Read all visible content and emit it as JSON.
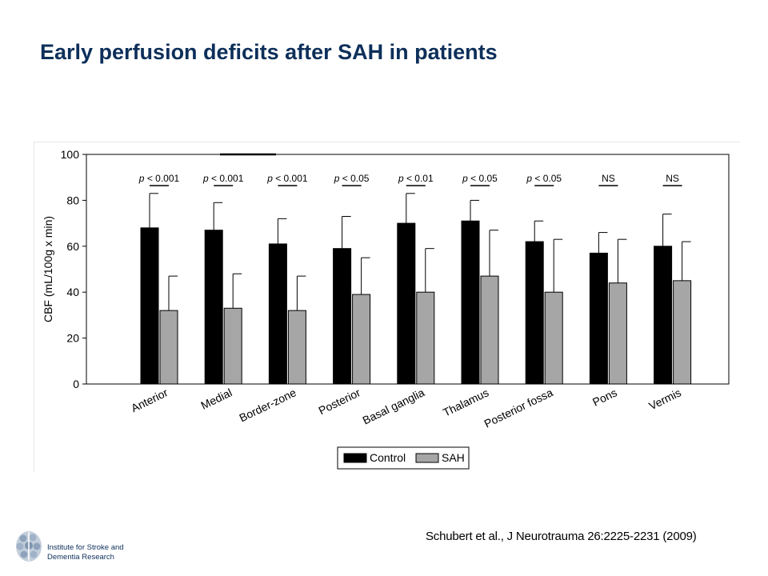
{
  "slide": {
    "title": "Early perfusion deficits after SAH in patients",
    "citation": "Schubert et al., J Neurotrauma 26:2225-2231 (2009)",
    "logo_line1": "Institute for Stroke and",
    "logo_line2": "Dementia Research"
  },
  "colors": {
    "control": "#000000",
    "sah": "#a6a6a6",
    "title": "#0d2f5a"
  },
  "chart_data": {
    "type": "bar",
    "title": "",
    "xlabel": "",
    "ylabel": "CBF (mL/100g x min)",
    "ylim": [
      0,
      100
    ],
    "yticks": [
      0,
      20,
      40,
      60,
      80,
      100
    ],
    "categories": [
      "Anterior",
      "Medial",
      "Border-zone",
      "Posterior",
      "Basal ganglia",
      "Thalamus",
      "Posterior fossa",
      "Pons",
      "Vermis"
    ],
    "series": [
      {
        "name": "Control",
        "values": [
          68,
          67,
          61,
          59,
          70,
          71,
          62,
          57,
          60
        ],
        "error_upper": [
          83,
          79,
          72,
          73,
          83,
          80,
          71,
          66,
          74
        ]
      },
      {
        "name": "SAH",
        "values": [
          32,
          33,
          32,
          39,
          40,
          47,
          40,
          44,
          45
        ],
        "error_upper": [
          47,
          48,
          47,
          55,
          59,
          67,
          63,
          63,
          62
        ]
      }
    ],
    "annotations": [
      "p < 0.001",
      "p < 0.001",
      "p < 0.001",
      "p < 0.05",
      "p < 0.01",
      "p < 0.05",
      "p < 0.05",
      "NS",
      "NS"
    ],
    "legend": {
      "position": "bottom-right",
      "labels": [
        "Control",
        "SAH"
      ]
    },
    "grid": false
  }
}
